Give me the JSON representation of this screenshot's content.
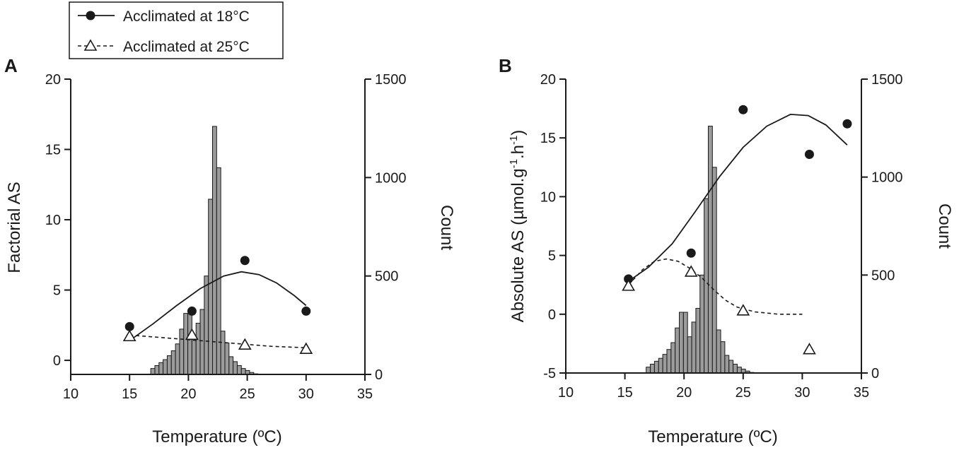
{
  "legend": {
    "position": "top-left",
    "entries": [
      {
        "label": "Acclimated at 18°C",
        "marker": "filled-circle",
        "line": "solid"
      },
      {
        "label": "Acclimated at 25°C",
        "marker": "open-triangle",
        "line": "dashed"
      }
    ]
  },
  "chart_data": [
    {
      "panel": "A",
      "type": "scatter",
      "xlabel": "Temperature (ºC)",
      "ylabel": "Factorial AS",
      "y2label": "Count",
      "xlim": [
        10,
        35
      ],
      "ylim": [
        -1,
        20
      ],
      "y2lim": [
        0,
        1500
      ],
      "xticks": [
        10,
        15,
        20,
        25,
        30,
        35
      ],
      "yticks": [
        0,
        5,
        10,
        15,
        20
      ],
      "y2ticks": [
        0,
        500,
        1000,
        1500
      ],
      "series": [
        {
          "name": "Acclimated at 18°C",
          "marker": "filled-circle",
          "points": [
            [
              15,
              2.4
            ],
            [
              20.3,
              3.5
            ],
            [
              24.8,
              7.1
            ],
            [
              30,
              3.5
            ]
          ],
          "fit": [
            [
              15,
              1.4
            ],
            [
              17,
              2.6
            ],
            [
              19,
              3.9
            ],
            [
              21,
              5.1
            ],
            [
              23,
              6.0
            ],
            [
              24.5,
              6.3
            ],
            [
              26,
              6.1
            ],
            [
              27.5,
              5.5
            ],
            [
              29,
              4.6
            ],
            [
              30,
              3.9
            ]
          ]
        },
        {
          "name": "Acclimated at 25°C",
          "marker": "open-triangle",
          "points": [
            [
              15,
              1.7
            ],
            [
              20.3,
              1.8
            ],
            [
              24.8,
              1.1
            ],
            [
              30,
              0.8
            ]
          ],
          "fit": [
            [
              15,
              1.8
            ],
            [
              18,
              1.6
            ],
            [
              21,
              1.4
            ],
            [
              24,
              1.2
            ],
            [
              27,
              1.0
            ],
            [
              30,
              0.9
            ]
          ]
        }
      ],
      "histogram": {
        "bin_width": 0.35,
        "bin_starts": [
          16.8,
          17.15,
          17.5,
          17.85,
          18.2,
          18.55,
          18.9,
          19.25,
          19.6,
          19.95,
          20.3,
          20.65,
          21.0,
          21.35,
          21.7,
          22.05,
          22.4,
          22.75,
          23.1,
          23.45,
          23.8,
          24.15,
          24.5,
          24.85,
          25.2,
          25.55
        ],
        "counts": [
          30,
          45,
          60,
          75,
          95,
          120,
          155,
          230,
          310,
          310,
          185,
          260,
          330,
          500,
          890,
          1260,
          1050,
          220,
          160,
          90,
          65,
          45,
          30,
          20,
          10,
          3
        ]
      }
    },
    {
      "panel": "B",
      "type": "scatter",
      "xlabel": "Temperature (ºC)",
      "ylabel_prefix": "Absolute AS (µmol.g",
      "ylabel_sup1": "-1",
      "ylabel_mid": ".h",
      "ylabel_sup2": "-1",
      "ylabel_suffix": ")",
      "y2label": "Count",
      "xlim": [
        10,
        35
      ],
      "ylim": [
        -5,
        20
      ],
      "y2lim": [
        0,
        1500
      ],
      "xticks": [
        10,
        15,
        20,
        25,
        30,
        35
      ],
      "yticks": [
        -5,
        0,
        5,
        10,
        15,
        20
      ],
      "y2ticks": [
        0,
        500,
        1000,
        1500
      ],
      "series": [
        {
          "name": "Acclimated at 18°C",
          "marker": "filled-circle",
          "points": [
            [
              15.3,
              3.0
            ],
            [
              20.6,
              5.2
            ],
            [
              25,
              17.4
            ],
            [
              30.6,
              13.6
            ],
            [
              33.8,
              16.2
            ]
          ],
          "fit": [
            [
              15.3,
              2.8
            ],
            [
              17,
              4.0
            ],
            [
              19,
              6.0
            ],
            [
              21,
              8.8
            ],
            [
              23,
              11.7
            ],
            [
              25,
              14.2
            ],
            [
              27,
              16.0
            ],
            [
              29,
              17.0
            ],
            [
              30.5,
              16.9
            ],
            [
              32,
              16.1
            ],
            [
              33.8,
              14.4
            ]
          ]
        },
        {
          "name": "Acclimated at 25°C",
          "marker": "open-triangle",
          "points": [
            [
              15.3,
              2.4
            ],
            [
              20.6,
              3.6
            ],
            [
              25,
              0.3
            ],
            [
              30.6,
              -3.0
            ]
          ],
          "fit": [
            [
              15.3,
              2.5
            ],
            [
              16.5,
              3.8
            ],
            [
              17.5,
              4.5
            ],
            [
              18.5,
              4.7
            ],
            [
              19.5,
              4.5
            ],
            [
              20.5,
              3.9
            ],
            [
              21.5,
              3.1
            ],
            [
              22.5,
              2.1
            ],
            [
              23.5,
              1.2
            ],
            [
              24.5,
              0.6
            ],
            [
              26,
              0.2
            ],
            [
              28,
              0.0
            ],
            [
              30,
              0.0
            ]
          ]
        }
      ],
      "histogram": {
        "bin_width": 0.35,
        "bin_starts": [
          16.8,
          17.15,
          17.5,
          17.85,
          18.2,
          18.55,
          18.9,
          19.25,
          19.6,
          19.95,
          20.3,
          20.65,
          21.0,
          21.35,
          21.7,
          22.05,
          22.4,
          22.75,
          23.1,
          23.45,
          23.8,
          24.15,
          24.5,
          24.85,
          25.2,
          25.55
        ],
        "counts": [
          30,
          45,
          60,
          75,
          95,
          120,
          155,
          230,
          310,
          310,
          185,
          260,
          330,
          500,
          890,
          1260,
          1050,
          220,
          160,
          90,
          65,
          45,
          30,
          20,
          10,
          3
        ]
      }
    }
  ]
}
